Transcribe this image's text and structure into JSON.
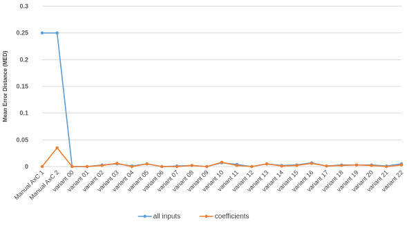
{
  "chart_data": {
    "type": "line",
    "title": "",
    "xlabel": "",
    "ylabel": "Mean Error Distance (MED)",
    "ylim": [
      0,
      0.3
    ],
    "yticks": [
      0,
      0.05,
      0.1,
      0.15,
      0.2,
      0.25,
      0.3
    ],
    "ytick_labels": [
      "0",
      "0.05",
      "0.1",
      "0.15",
      "0.2",
      "0.25",
      "0.3"
    ],
    "grid": true,
    "legend_position": "bottom",
    "categories": [
      "Manual AxC 1",
      "Manual AxC 2",
      "variant 00",
      "variant 01",
      "variant 02",
      "variant 03",
      "variant 04",
      "variant 05",
      "variant 06",
      "variant 07",
      "variant 08",
      "variant 09",
      "variant 10",
      "variant 11",
      "variant 12",
      "variant 13",
      "variant 14",
      "variant 15",
      "variant 16",
      "variant 17",
      "variant 18",
      "variant 19",
      "variant 20",
      "variant 21",
      "variant 22"
    ],
    "series": [
      {
        "name": "all inputs",
        "color": "#5b9bd5",
        "values": [
          0.25,
          0.25,
          0.0,
          0.0,
          0.003,
          0.005,
          0.001,
          0.005,
          0.0,
          0.001,
          0.002,
          0.0,
          0.007,
          0.004,
          0.0,
          0.005,
          0.002,
          0.003,
          0.007,
          0.001,
          0.003,
          0.003,
          0.003,
          0.001,
          0.005
        ]
      },
      {
        "name": "coefficients",
        "color": "#ed7d31",
        "values": [
          0.0,
          0.035,
          0.0,
          0.0,
          0.002,
          0.006,
          0.0,
          0.005,
          0.0,
          0.0,
          0.002,
          0.0,
          0.008,
          0.002,
          0.0,
          0.005,
          0.001,
          0.002,
          0.006,
          0.001,
          0.002,
          0.003,
          0.002,
          0.0,
          0.003
        ]
      }
    ]
  }
}
